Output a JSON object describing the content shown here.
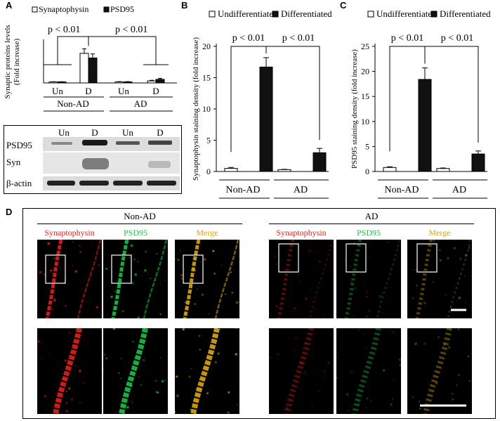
{
  "figure": {
    "panel_labels": [
      "A",
      "B",
      "C",
      "D"
    ]
  },
  "chart_data": [
    {
      "type": "bar",
      "panel": "A",
      "ylabel": "Synaptic proteins levels (Fold increase)",
      "ylim": [
        0,
        40
      ],
      "categories": [
        "Un",
        "D",
        "Un",
        "D"
      ],
      "groups": [
        "Non-AD",
        "AD"
      ],
      "series": [
        {
          "name": "Synaptophysin",
          "values": [
            1.0,
            29.0,
            1.0,
            2.0
          ],
          "errors": [
            0.2,
            4.5,
            0.3,
            0.6
          ],
          "color": "#ffffff"
        },
        {
          "name": "PSD95",
          "values": [
            1.0,
            24.5,
            1.0,
            3.5
          ],
          "errors": [
            0.2,
            4.0,
            0.3,
            1.0
          ],
          "color": "#111111"
        }
      ],
      "annotations": [
        "p < 0.01",
        "p < 0.01"
      ]
    },
    {
      "type": "bar",
      "panel": "B",
      "ylabel": "Synaptophysin staining density (fold increase)",
      "ylim": [
        0,
        20
      ],
      "yticks": [
        0,
        5,
        10,
        15,
        20
      ],
      "groups": [
        "Non-AD",
        "AD"
      ],
      "series": [
        {
          "name": "Undifferentiated",
          "values": [
            0.5,
            0.3
          ],
          "errors": [
            0.15,
            0.05
          ],
          "color": "#ffffff"
        },
        {
          "name": "Differentiated",
          "values": [
            16.7,
            3.0
          ],
          "errors": [
            1.5,
            0.7
          ],
          "color": "#111111"
        }
      ],
      "annotations": [
        "p < 0.01",
        "p < 0.01"
      ]
    },
    {
      "type": "bar",
      "panel": "C",
      "ylabel": "PSD95 staining density (fold increase)",
      "ylim": [
        0,
        25
      ],
      "yticks": [
        0,
        5,
        10,
        15,
        20,
        25
      ],
      "groups": [
        "Non-AD",
        "AD"
      ],
      "series": [
        {
          "name": "Undifferentiated",
          "values": [
            0.8,
            0.6
          ],
          "errors": [
            0.15,
            0.1
          ],
          "color": "#ffffff"
        },
        {
          "name": "Differentiated",
          "values": [
            18.4,
            3.5
          ],
          "errors": [
            2.3,
            0.6
          ],
          "color": "#111111"
        }
      ],
      "annotations": [
        "p < 0.01",
        "p < 0.01"
      ]
    }
  ],
  "blot": {
    "lane_labels": [
      "Un",
      "D",
      "Un",
      "D"
    ],
    "row_labels": [
      "PSD95",
      "Syn",
      "β-actin"
    ]
  },
  "panelD": {
    "groups": [
      "Non-AD",
      "AD"
    ],
    "columns": [
      "Synaptophysin",
      "PSD95",
      "Merge"
    ],
    "column_colors": [
      "#e0201b",
      "#19c146",
      "#d9a516"
    ]
  }
}
